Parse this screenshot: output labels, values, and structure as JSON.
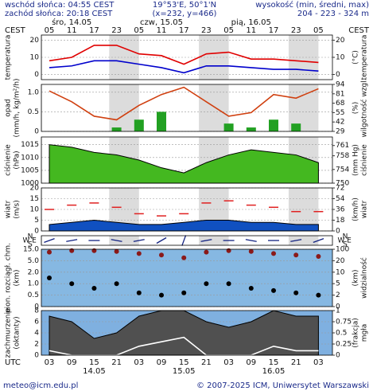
{
  "header": {
    "sunrise": "wschód słońca: 04:55 CEST",
    "sunset": "zachód słońca: 20:18 CEST",
    "coords": "19°53'E, 50°1'N",
    "grid": "(x=232, y=466)",
    "height_title": "wysokość (min, średni, max)",
    "height_values": "204 - 223 - 324 m"
  },
  "time_axis": {
    "top_zone": "CEST",
    "bottom_zone": "UTC",
    "cest_labels": [
      "05",
      "11",
      "17",
      "23",
      "05",
      "11",
      "17",
      "23",
      "05",
      "11",
      "17",
      "23",
      "05"
    ],
    "utc_labels": [
      "03",
      "09",
      "15",
      "21",
      "03",
      "09",
      "15",
      "21",
      "03",
      "09",
      "15",
      "21",
      "03"
    ],
    "top_days": [
      "śro, 14.05",
      "czw, 15.05",
      "pią, 16.05"
    ],
    "bottom_days": [
      "14.05",
      "15.05",
      "16.05"
    ]
  },
  "chart_data": [
    {
      "type": "line",
      "ylabel": [
        "temperatura"
      ],
      "y2label": [
        "(°C)",
        "temperatura"
      ],
      "ylim": [
        -3,
        23
      ],
      "yticks": [
        0,
        10,
        20
      ],
      "y2ticks": [
        0,
        10,
        20
      ],
      "grid": true,
      "series": [
        {
          "type": "line",
          "color": "#e00000",
          "values": [
            8,
            10,
            17,
            17,
            12,
            11,
            6,
            12,
            13,
            9,
            9,
            8,
            7
          ]
        },
        {
          "type": "line",
          "color": "#0000cc",
          "values": [
            4,
            5,
            8,
            8,
            6,
            4,
            1,
            5,
            5,
            4,
            3,
            3,
            2
          ]
        }
      ]
    },
    {
      "type": "bar",
      "ylabel": [
        "opad",
        "(mm/h, kg/m²/h)"
      ],
      "y2label": [
        "(%)",
        "wilgotność wzgl."
      ],
      "ylim": [
        0,
        1.2
      ],
      "yticks": [
        0,
        0.5,
        {
          "value": 1,
          "label": "1.0"
        }
      ],
      "y2lim": [
        29,
        94
      ],
      "y2ticks": [
        29,
        42,
        55,
        68,
        81,
        94
      ],
      "grid": true,
      "series": [
        {
          "type": "bar",
          "color": "#22a022",
          "values": [
            0,
            0,
            0,
            0.1,
            0.3,
            0.5,
            0,
            0,
            0.2,
            0.1,
            0.3,
            0.2,
            0
          ]
        },
        {
          "type": "line",
          "axis": "y2",
          "color": "#d04010",
          "values": [
            85,
            70,
            50,
            45,
            65,
            80,
            90,
            70,
            50,
            55,
            80,
            75,
            88
          ]
        }
      ]
    },
    {
      "type": "area",
      "ylabel": [
        "ciśnienie",
        "(hPa)"
      ],
      "y2label": [
        "(mm Hg)",
        "ciśnienie"
      ],
      "ylim": [
        1000,
        1018
      ],
      "yticks": [
        1000,
        1005,
        1010,
        1015
      ],
      "y2lim": [
        750,
        763.5
      ],
      "y2ticks": [
        750,
        754,
        758,
        761
      ],
      "grid": true,
      "series": [
        {
          "type": "area",
          "color": "#44b820",
          "values": [
            1015,
            1014,
            1012,
            1011,
            1009,
            1006,
            1004,
            1008,
            1011,
            1013,
            1012,
            1011,
            1008
          ]
        }
      ]
    },
    {
      "type": "area",
      "ylabel": [
        "wiatr",
        "(m/s)"
      ],
      "y2label": [
        "(km/h)",
        "wiatr"
      ],
      "ylim": [
        0,
        20
      ],
      "yticks": [
        0,
        5,
        10,
        15,
        20
      ],
      "y2lim": [
        0,
        72
      ],
      "y2ticks": [
        0,
        18,
        36,
        54,
        72
      ],
      "grid": true,
      "series": [
        {
          "type": "area",
          "color": "#1050c0",
          "values": [
            3,
            4,
            5,
            4,
            3,
            3,
            4,
            5,
            5,
            4,
            4,
            3,
            3
          ]
        },
        {
          "type": "dash",
          "color": "#e02020",
          "values": [
            10,
            12,
            13,
            11,
            8,
            7,
            8,
            13,
            14,
            12,
            11,
            9,
            9
          ]
        }
      ]
    },
    {
      "type": "arrows",
      "compass": [
        "W",
        "N",
        "S",
        "E"
      ],
      "series": [
        {
          "type": "arrows",
          "color": "#102080",
          "values": [
            250,
            260,
            270,
            280,
            260,
            240,
            200,
            260,
            270,
            280,
            270,
            260,
            250
          ]
        }
      ]
    },
    {
      "type": "scatter",
      "ylabel": [
        "pion. rozciągł. chm.",
        "(km)"
      ],
      "y2label": [
        "(km)",
        "widzialność"
      ],
      "yscale": "piecewise",
      "yticks": [
        0,
        0.5,
        {
          "value": 1,
          "label": "1.0"
        },
        {
          "value": 2,
          "label": "2.0"
        },
        {
          "value": 5,
          "label": "5.0"
        },
        {
          "value": 15,
          "label": "15.0"
        }
      ],
      "y2ticks": [
        0,
        2,
        5,
        10,
        20,
        100
      ],
      "grid": true,
      "series": [
        {
          "type": "dots",
          "axis": "y2",
          "color": "#8a1a1a",
          "values": [
            80,
            90,
            90,
            85,
            70,
            60,
            40,
            80,
            90,
            85,
            70,
            60,
            50
          ]
        },
        {
          "type": "dots",
          "color": "#000000",
          "values": [
            1.5,
            1,
            0.8,
            1,
            0.6,
            0.5,
            0.6,
            1,
            1,
            0.8,
            0.7,
            0.6,
            0.5
          ]
        }
      ]
    },
    {
      "type": "area",
      "ylabel": [
        "zachmurzenie",
        "(oktanty)"
      ],
      "y2label": [
        "(frakcja)",
        "mgła"
      ],
      "ylim": [
        0,
        8
      ],
      "yticks": [
        0,
        2,
        4,
        6,
        8
      ],
      "y2lim": [
        0,
        1
      ],
      "y2ticks": [
        0,
        0.25,
        0.5,
        0.75,
        1
      ],
      "grid": true,
      "series": [
        {
          "type": "area",
          "color": "#505050",
          "values": [
            7,
            6,
            3,
            4,
            7,
            8,
            8,
            6,
            5,
            6,
            8,
            7,
            7
          ]
        },
        {
          "type": "line",
          "axis": "y2",
          "color": "#ffffff",
          "values": [
            0.1,
            0,
            0,
            0,
            0.2,
            0.3,
            0.4,
            0,
            0,
            0,
            0.2,
            0.1,
            0.1
          ]
        }
      ]
    }
  ],
  "footer": {
    "email": "meteo@icm.edu.pl",
    "copyright": "© 2007-2025 ICM, Uniwersytet Warszawski"
  }
}
